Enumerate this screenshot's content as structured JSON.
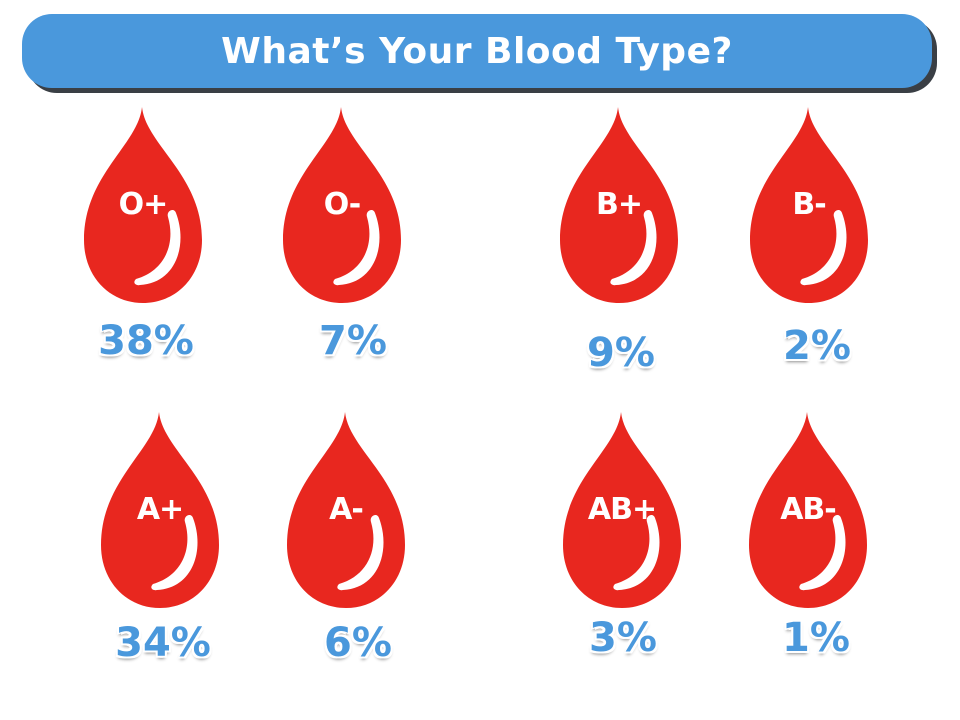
{
  "title": "What’s Your Blood Type?",
  "colors": {
    "banner": "#4a98dc",
    "drop": "#e8271f",
    "percent": "#4a98dc"
  },
  "blood_types": [
    {
      "type": "O+",
      "percent": "38%"
    },
    {
      "type": "O-",
      "percent": "7%"
    },
    {
      "type": "B+",
      "percent": "9%"
    },
    {
      "type": "B-",
      "percent": "2%"
    },
    {
      "type": "A+",
      "percent": "34%"
    },
    {
      "type": "A-",
      "percent": "6%"
    },
    {
      "type": "AB+",
      "percent": "3%"
    },
    {
      "type": "AB-",
      "percent": "1%"
    }
  ]
}
